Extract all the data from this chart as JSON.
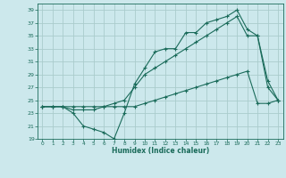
{
  "title": "",
  "xlabel": "Humidex (Indice chaleur)",
  "bg_color": "#cce8ec",
  "grid_color": "#aacccc",
  "line_color": "#1a6b5a",
  "xlim": [
    -0.5,
    23.5
  ],
  "ylim": [
    19,
    40
  ],
  "xticks": [
    0,
    1,
    2,
    3,
    4,
    5,
    6,
    7,
    8,
    9,
    10,
    11,
    12,
    13,
    14,
    15,
    16,
    17,
    18,
    19,
    20,
    21,
    22,
    23
  ],
  "yticks": [
    19,
    21,
    23,
    25,
    27,
    29,
    31,
    33,
    35,
    37,
    39
  ],
  "line1_x": [
    0,
    1,
    2,
    3,
    4,
    5,
    6,
    7,
    8,
    9,
    10,
    11,
    12,
    13,
    14,
    15,
    16,
    17,
    18,
    19,
    20,
    21,
    22,
    23
  ],
  "line1_y": [
    24,
    24,
    24,
    23,
    21,
    20.5,
    20,
    19,
    23,
    27.5,
    30,
    32.5,
    33,
    33,
    35.5,
    35.5,
    37,
    37.5,
    38,
    39,
    36,
    35,
    28,
    25
  ],
  "line2_x": [
    0,
    1,
    2,
    3,
    4,
    5,
    6,
    7,
    8,
    9,
    10,
    11,
    12,
    13,
    14,
    15,
    16,
    17,
    18,
    19,
    20,
    21,
    22,
    23
  ],
  "line2_y": [
    24,
    24,
    24,
    23.5,
    23.5,
    23.5,
    24,
    24.5,
    25,
    27,
    29,
    30,
    31,
    32,
    33,
    34,
    35,
    36,
    37,
    38,
    35,
    35,
    27,
    25
  ],
  "line3_x": [
    0,
    1,
    2,
    3,
    4,
    5,
    6,
    7,
    8,
    9,
    10,
    11,
    12,
    13,
    14,
    15,
    16,
    17,
    18,
    19,
    20,
    21,
    22,
    23
  ],
  "line3_y": [
    24,
    24,
    24,
    24,
    24,
    24,
    24,
    24,
    24,
    24,
    24.5,
    25,
    25.5,
    26,
    26.5,
    27,
    27.5,
    28,
    28.5,
    29,
    29.5,
    24.5,
    24.5,
    25
  ]
}
